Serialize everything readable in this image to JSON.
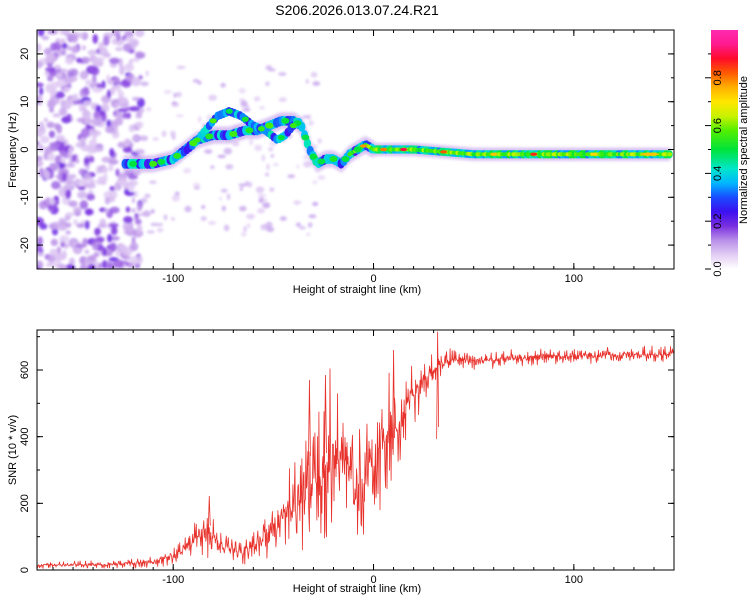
{
  "title": "S206.2026.013.07.24.R21",
  "colors": {
    "line": "#e8312b",
    "axis": "#000000",
    "background": "#ffffff"
  },
  "chart_data": [
    {
      "type": "heatmap",
      "title": "S206.2026.013.07.24.R21",
      "xlabel": "Height of straight line (km)",
      "ylabel": "Frequency (Hz)",
      "xlim": [
        -168,
        150
      ],
      "ylim": [
        -25,
        25
      ],
      "xticks": [
        -100,
        0,
        100
      ],
      "xtick_labels": [
        "-100",
        "0",
        "100"
      ],
      "yticks": [
        -20,
        -10,
        0,
        10,
        20
      ],
      "ytick_labels": [
        "-20",
        "-10",
        "0",
        "10",
        "20"
      ],
      "colorbar": {
        "label": "Normalized spectral amplitude",
        "range": [
          0,
          1
        ],
        "ticks": [
          0,
          0.2,
          0.4,
          0.6,
          0.8
        ],
        "tick_labels": [
          "0.0",
          "0.2",
          "0.4",
          "0.6",
          "0.8"
        ]
      },
      "ridge_frequency": {
        "x": [
          -124,
          -110,
          -100,
          -94,
          -88,
          -80,
          -72,
          -64,
          -58,
          -52,
          -46,
          -40,
          -36,
          -32,
          -28,
          -24,
          -20,
          -16,
          -12,
          -8,
          -4,
          0,
          20,
          50,
          80,
          110,
          148
        ],
        "y": [
          -3,
          -3,
          -2,
          0,
          2,
          3,
          3,
          4,
          4,
          5,
          6,
          6,
          5,
          0,
          -3,
          -2,
          -2,
          -3,
          -1,
          0,
          1,
          0,
          0,
          -1,
          -1,
          -1,
          -1
        ]
      },
      "secondary_branch": {
        "x": [
          -96,
          -90,
          -84,
          -78,
          -72,
          -66,
          -60,
          -54,
          -48,
          -44,
          -40,
          -36
        ],
        "y": [
          -1,
          1,
          4,
          7,
          8,
          7,
          5,
          4,
          2,
          3,
          5,
          6
        ]
      },
      "noise_region_x": [
        -168,
        -122
      ]
    },
    {
      "type": "line",
      "xlabel": "Height of straight line (km)",
      "ylabel": "SNR (10 * v/v)",
      "xlim": [
        -168,
        150
      ],
      "ylim": [
        0,
        720
      ],
      "xticks": [
        -100,
        0,
        100
      ],
      "xtick_labels": [
        "-100",
        "0",
        "100"
      ],
      "yticks": [
        0,
        200,
        400,
        600
      ],
      "ytick_labels": [
        "0",
        "200",
        "400",
        "600"
      ],
      "series": [
        {
          "name": "SNR",
          "x": [
            -168,
            -150,
            -130,
            -120,
            -110,
            -100,
            -95,
            -90,
            -85,
            -82,
            -78,
            -72,
            -65,
            -58,
            -52,
            -46,
            -40,
            -34,
            -28,
            -24,
            -20,
            -16,
            -12,
            -8,
            -4,
            0,
            4,
            8,
            12,
            16,
            20,
            24,
            28,
            32,
            36,
            40,
            45,
            50,
            60,
            70,
            80,
            90,
            100,
            110,
            120,
            130,
            140,
            150
          ],
          "baseline": [
            15,
            15,
            17,
            20,
            25,
            40,
            60,
            90,
            120,
            110,
            85,
            60,
            55,
            80,
            120,
            160,
            190,
            220,
            260,
            300,
            330,
            370,
            300,
            250,
            270,
            300,
            380,
            400,
            420,
            480,
            530,
            560,
            590,
            610,
            625,
            630,
            630,
            628,
            630,
            635,
            638,
            640,
            642,
            643,
            645,
            646,
            648,
            650
          ],
          "amplitude": [
            10,
            12,
            12,
            15,
            18,
            30,
            40,
            60,
            90,
            80,
            50,
            40,
            40,
            60,
            90,
            120,
            150,
            200,
            280,
            300,
            300,
            180,
            180,
            220,
            200,
            240,
            200,
            200,
            150,
            120,
            110,
            80,
            70,
            50,
            40,
            35,
            30,
            30,
            28,
            28,
            26,
            26,
            25,
            25,
            25,
            25,
            25,
            25
          ],
          "peaks": [
            {
              "x": -82,
              "y": 222
            },
            {
              "x": -32,
              "y": 570
            },
            {
              "x": -24,
              "y": 585
            },
            {
              "x": 10,
              "y": 660
            },
            {
              "x": 32,
              "y": 715
            }
          ]
        }
      ]
    }
  ]
}
